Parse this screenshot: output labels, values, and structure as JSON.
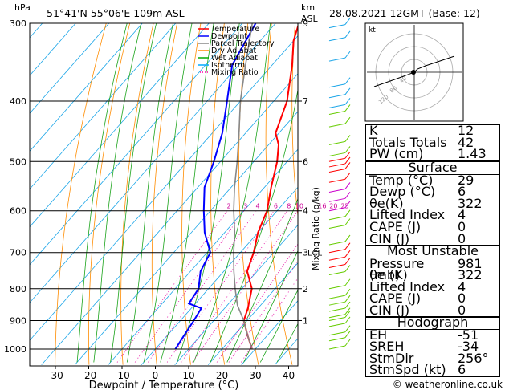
{
  "header": {
    "location": "51°41'N  55°06'E  109m  ASL",
    "datetime": "28.08.2021  12GMT  (Base: 12)",
    "pressure_unit": "hPa",
    "height_unit_km": "km",
    "height_unit_asl": "ASL",
    "footer_credit": "© weatheronline.co.uk"
  },
  "legend": [
    {
      "label": "Temperature",
      "color": "#ff0000",
      "style": "solid"
    },
    {
      "label": "Dewpoint",
      "color": "#0000ff",
      "style": "solid"
    },
    {
      "label": "Parcel Trajectory",
      "color": "#888888",
      "style": "solid"
    },
    {
      "label": "Dry Adiabat",
      "color": "#ff8800",
      "style": "solid"
    },
    {
      "label": "Wet Adiabat",
      "color": "#00aa00",
      "style": "solid"
    },
    {
      "label": "Isotherm",
      "color": "#00aaff",
      "style": "solid"
    },
    {
      "label": "Mixing Ratio",
      "color": "#ff00aa",
      "style": "dotted"
    }
  ],
  "chart_data": {
    "type": "line",
    "xlabel": "Dewpoint / Temperature (°C)",
    "ylabel_right": "Mixing Ratio (g/kg)",
    "x_ticks": [
      -30,
      -20,
      -10,
      0,
      10,
      20,
      30,
      40
    ],
    "xlim": [
      -40,
      42
    ],
    "pressure_ticks": [
      300,
      400,
      500,
      600,
      700,
      800,
      900,
      1000
    ],
    "km_ticks": [
      {
        "p": 300,
        "label": "9"
      },
      {
        "p": 400,
        "label": "7"
      },
      {
        "p": 500,
        "label": "6"
      },
      {
        "p": 600,
        "label": "4"
      },
      {
        "p": 700,
        "label": "3"
      },
      {
        "p": 800,
        "label": "2"
      },
      {
        "p": 900,
        "label": "1"
      }
    ],
    "lcl": {
      "p": 700,
      "label": "LCL"
    },
    "mixing_ratio_labels": [
      "2",
      "3",
      "4",
      "6",
      "8",
      "10",
      "16",
      "20",
      "25"
    ],
    "series": [
      {
        "name": "Temperature",
        "color": "#ff0000",
        "points": [
          [
            29,
            1000
          ],
          [
            24,
            950
          ],
          [
            19,
            900
          ],
          [
            17,
            860
          ],
          [
            16,
            845
          ],
          [
            13,
            800
          ],
          [
            7,
            750
          ],
          [
            4,
            700
          ],
          [
            0,
            650
          ],
          [
            -3,
            600
          ],
          [
            -8,
            550
          ],
          [
            -13,
            500
          ],
          [
            -17,
            470
          ],
          [
            -21,
            450
          ],
          [
            -26,
            400
          ],
          [
            -34,
            350
          ],
          [
            -40,
            320
          ],
          [
            -43,
            300
          ]
        ]
      },
      {
        "name": "Dewpoint",
        "color": "#0000ff",
        "points": [
          [
            6,
            1000
          ],
          [
            5,
            950
          ],
          [
            4,
            900
          ],
          [
            3,
            860
          ],
          [
            -2,
            845
          ],
          [
            -3,
            800
          ],
          [
            -7,
            750
          ],
          [
            -9,
            700
          ],
          [
            -16,
            650
          ],
          [
            -22,
            600
          ],
          [
            -28,
            550
          ],
          [
            -32,
            500
          ],
          [
            -37,
            450
          ],
          [
            -44,
            400
          ],
          [
            -52,
            350
          ],
          [
            -56,
            300
          ]
        ]
      },
      {
        "name": "Parcel Trajectory",
        "color": "#888888",
        "points": [
          [
            29,
            1000
          ],
          [
            24,
            950
          ],
          [
            19,
            900
          ],
          [
            13,
            850
          ],
          [
            8,
            800
          ],
          [
            3,
            750
          ],
          [
            -2,
            700
          ],
          [
            -7,
            650
          ],
          [
            -13,
            600
          ],
          [
            -19,
            550
          ],
          [
            -25,
            500
          ],
          [
            -32,
            450
          ],
          [
            -40,
            400
          ],
          [
            -48,
            350
          ],
          [
            -57,
            300
          ]
        ]
      }
    ]
  },
  "hodograph": {
    "label": "kt",
    "ring_labels": [
      "40",
      "80",
      "120"
    ]
  },
  "indices": {
    "top": [
      {
        "label": "K",
        "value": "12"
      },
      {
        "label": "Totals Totals",
        "value": "42"
      },
      {
        "label": "PW (cm)",
        "value": "1.43"
      }
    ],
    "surface": {
      "title": "Surface",
      "rows": [
        {
          "label": "Temp (°C)",
          "value": "29"
        },
        {
          "label": "Dewp (°C)",
          "value": "6"
        },
        {
          "label": "θe(K)",
          "value": "322"
        },
        {
          "label": "Lifted Index",
          "value": "4"
        },
        {
          "label": "CAPE (J)",
          "value": "0"
        },
        {
          "label": "CIN (J)",
          "value": "0"
        }
      ]
    },
    "most_unstable": {
      "title": "Most Unstable",
      "rows": [
        {
          "label": "Pressure (mb)",
          "value": "981"
        },
        {
          "label": "θe (K)",
          "value": "322"
        },
        {
          "label": "Lifted Index",
          "value": "4"
        },
        {
          "label": "CAPE (J)",
          "value": "0"
        },
        {
          "label": "CIN (J)",
          "value": "0"
        }
      ]
    },
    "hodograph_box": {
      "title": "Hodograph",
      "rows": [
        {
          "label": "EH",
          "value": "-51"
        },
        {
          "label": "SREH",
          "value": "-34"
        },
        {
          "label": "StmDir",
          "value": "256°"
        },
        {
          "label": "StmSpd (kt)",
          "value": "6"
        }
      ]
    }
  }
}
